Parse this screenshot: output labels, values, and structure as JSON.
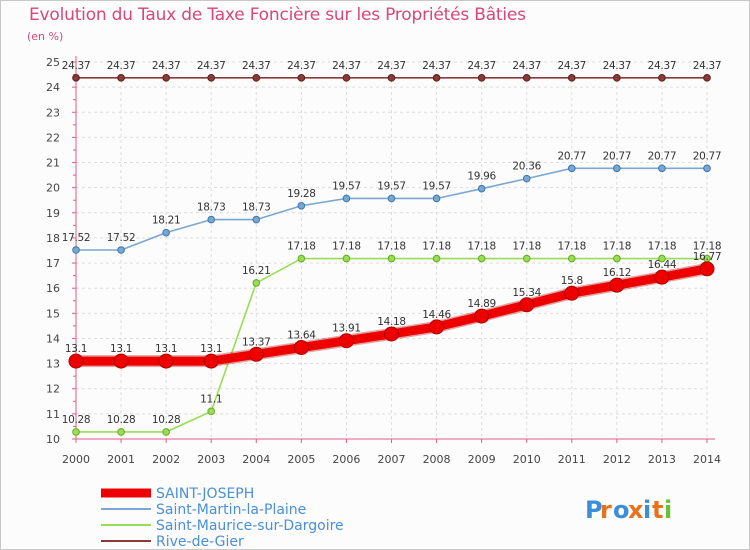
{
  "chart_data": {
    "type": "line",
    "title": "Evolution du Taux de Taxe Foncière sur les Propriétés Bâties",
    "ylabel": "(en %)",
    "xlabel": "",
    "x": [
      "2000",
      "2001",
      "2002",
      "2003",
      "2004",
      "2005",
      "2006",
      "2007",
      "2008",
      "2009",
      "2010",
      "2011",
      "2012",
      "2013",
      "2014"
    ],
    "ylim": [
      10,
      25
    ],
    "yticks": [
      "10",
      "11",
      "12",
      "13",
      "14",
      "15",
      "16",
      "17",
      "18",
      "19",
      "20",
      "21",
      "22",
      "23",
      "24",
      "25"
    ],
    "grid": true,
    "legend_position": "bottom-left",
    "series": [
      {
        "name": "SAINT-JOSEPH",
        "color": "#ee0000",
        "values": [
          13.1,
          13.1,
          13.1,
          13.1,
          13.37,
          13.64,
          13.91,
          14.18,
          14.46,
          14.89,
          15.34,
          15.8,
          16.12,
          16.44,
          16.77
        ],
        "labels": [
          "13.1",
          "13.1",
          "13.1",
          "13.1",
          "13.37",
          "13.64",
          "13.91",
          "14.18",
          "14.46",
          "14.89",
          "15.34",
          "15.8",
          "16.12",
          "16.44",
          "16.77"
        ]
      },
      {
        "name": "Saint-Martin-la-Plaine",
        "color": "#7aa7d1",
        "values": [
          17.52,
          17.52,
          18.21,
          18.73,
          18.73,
          19.28,
          19.57,
          19.57,
          19.57,
          19.96,
          20.36,
          20.77,
          20.77,
          20.77,
          20.77
        ],
        "labels": [
          "17.52",
          "17.52",
          "18.21",
          "18.73",
          "18.73",
          "19.28",
          "19.57",
          "19.57",
          "19.57",
          "19.96",
          "20.36",
          "20.77",
          "20.77",
          "20.77",
          "20.77"
        ]
      },
      {
        "name": "Saint-Maurice-sur-Dargoire",
        "color": "#99dd55",
        "values": [
          10.28,
          10.28,
          10.28,
          11.1,
          16.21,
          17.18,
          17.18,
          17.18,
          17.18,
          17.18,
          17.18,
          17.18,
          17.18,
          17.18,
          17.18
        ],
        "labels": [
          "10.28",
          "10.28",
          "10.28",
          "11.1",
          "16.21",
          "17.18",
          "17.18",
          "17.18",
          "17.18",
          "17.18",
          "17.18",
          "17.18",
          "17.18",
          "17.18",
          "17.18"
        ]
      },
      {
        "name": "Rive-de-Gier",
        "color": "#8b3a3a",
        "values": [
          24.37,
          24.37,
          24.37,
          24.37,
          24.37,
          24.37,
          24.37,
          24.37,
          24.37,
          24.37,
          24.37,
          24.37,
          24.37,
          24.37,
          24.37
        ],
        "labels": [
          "24.37",
          "24.37",
          "24.37",
          "24.37",
          "24.37",
          "24.37",
          "24.37",
          "24.37",
          "24.37",
          "24.37",
          "24.37",
          "24.37",
          "24.37",
          "24.37",
          "24.37"
        ]
      }
    ]
  },
  "brand": {
    "logo_text": "Proxiti",
    "letter_colors": [
      "#3a8fd8",
      "#e8731a",
      "#3a8fd8",
      "#e8731a",
      "#3a8fd8",
      "#e8731a",
      "#6cbf3a"
    ]
  }
}
